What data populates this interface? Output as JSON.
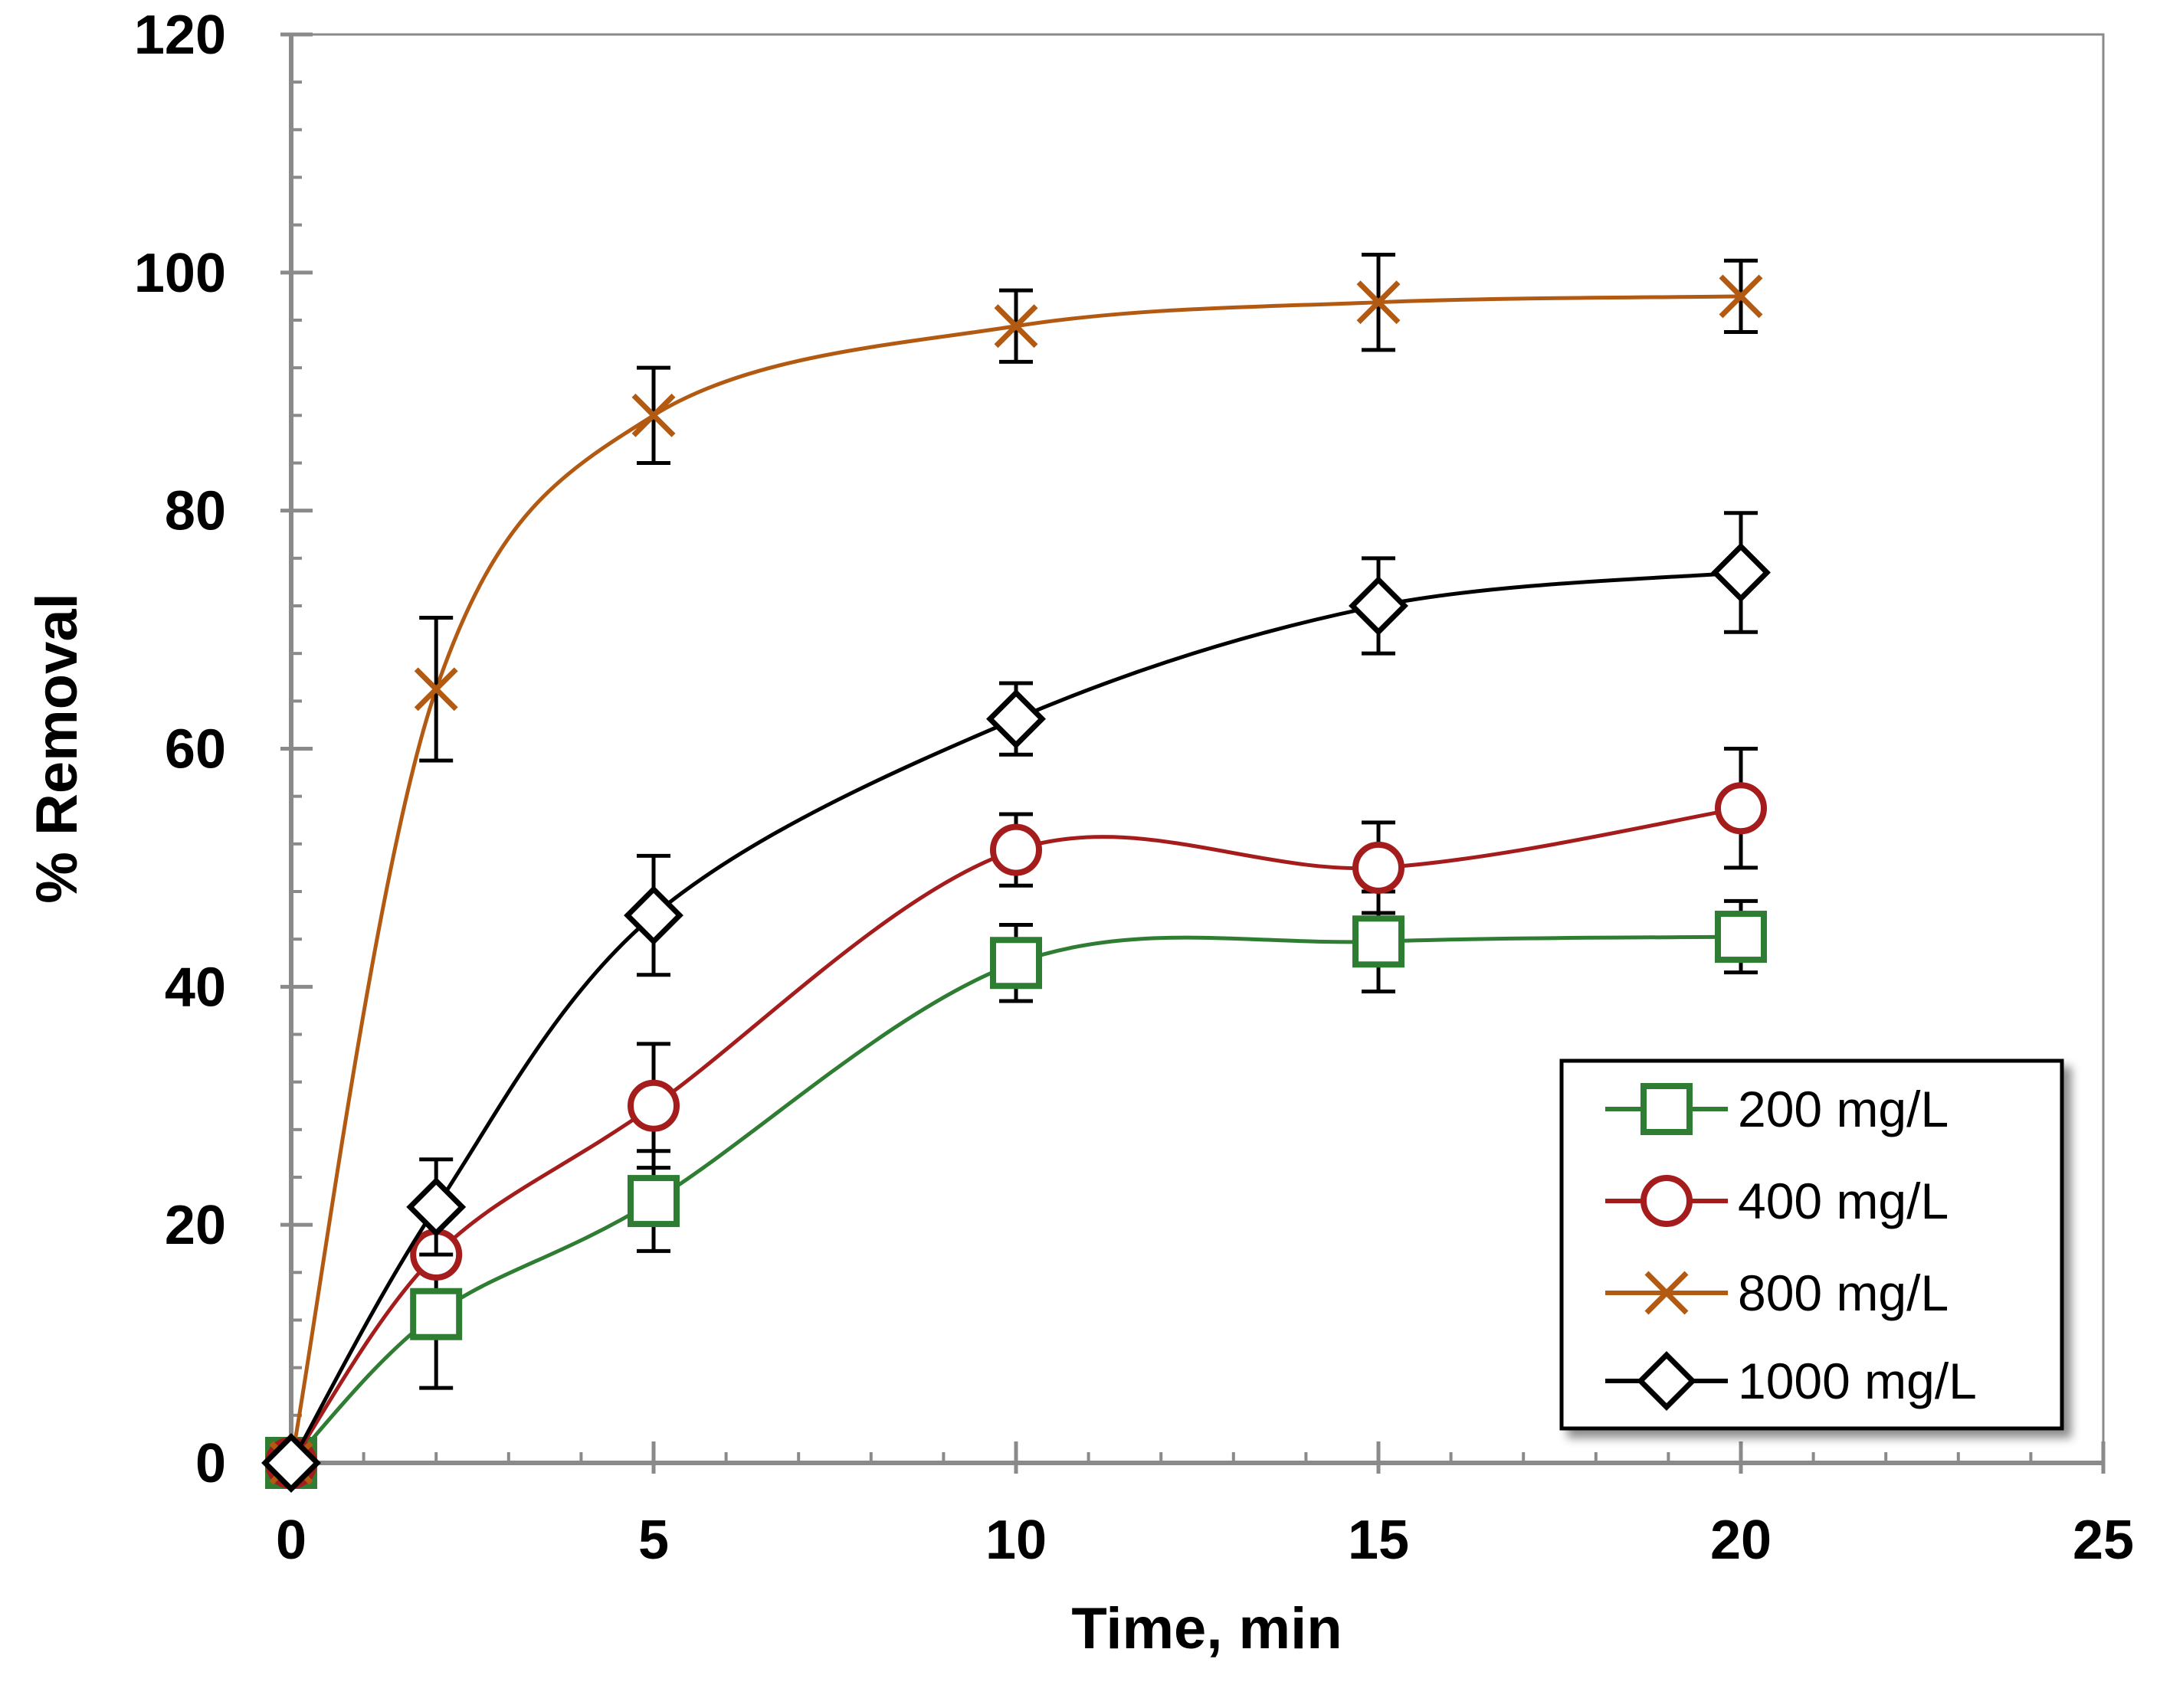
{
  "chart_data": {
    "type": "line",
    "title": "",
    "xlabel": "Time, min",
    "ylabel": "% Removal",
    "xlim": [
      0,
      25
    ],
    "ylim": [
      0,
      120
    ],
    "xticks": [
      0,
      5,
      10,
      15,
      20,
      25
    ],
    "yticks": [
      0,
      20,
      40,
      60,
      80,
      100,
      120
    ],
    "grid": false,
    "legend_position": "bottom-right",
    "x": [
      0,
      2,
      5,
      10,
      15,
      20
    ],
    "series": [
      {
        "name": "200 mg/L",
        "color": "#2e7d32",
        "marker": "square",
        "values": [
          0,
          12.5,
          22,
          42,
          43.8,
          44.2
        ],
        "errors": [
          0,
          6.2,
          4.2,
          3.2,
          4.2,
          3.0
        ]
      },
      {
        "name": "400 mg/L",
        "color": "#a51c1c",
        "marker": "circle",
        "values": [
          0,
          17.5,
          30,
          51.5,
          50,
          55
        ],
        "errors": [
          0,
          0,
          5.2,
          3.0,
          3.8,
          5.0
        ]
      },
      {
        "name": "800 mg/L",
        "color": "#b25a12",
        "marker": "x",
        "values": [
          0,
          65,
          88,
          95.5,
          97.5,
          98
        ],
        "errors": [
          0,
          6.0,
          4.0,
          3.0,
          4.0,
          3.0
        ]
      },
      {
        "name": "1000 mg/L",
        "color": "#000000",
        "marker": "diamond",
        "values": [
          0,
          21.5,
          46,
          62.5,
          72,
          74.8
        ],
        "errors": [
          0,
          4.0,
          5.0,
          3.0,
          4.0,
          5.0
        ]
      }
    ]
  }
}
